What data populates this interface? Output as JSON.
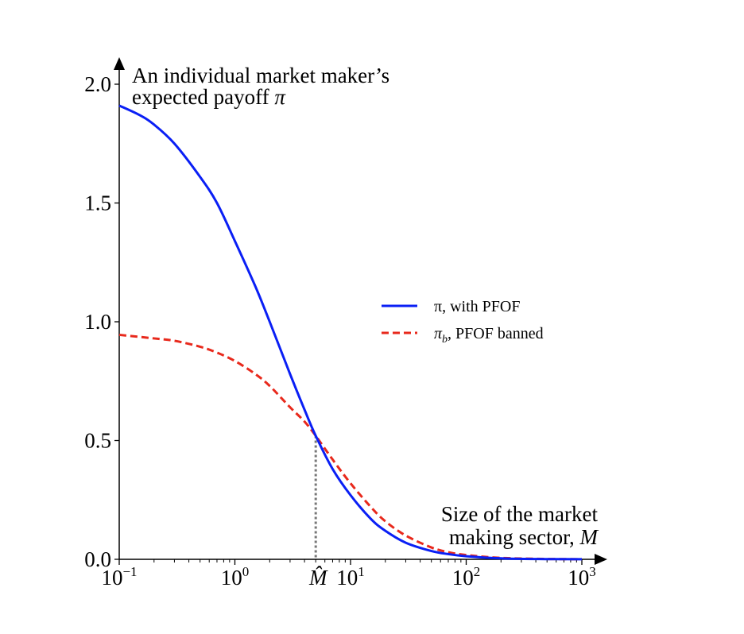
{
  "chart_data": {
    "type": "line",
    "x_scale": "log",
    "x_range": [
      0.1,
      1000
    ],
    "y_range": [
      0,
      2.0
    ],
    "grid": false,
    "legend_position": "right-middle",
    "y_axis_title": [
      "An individual market maker’s",
      "expected payoff π"
    ],
    "x_axis_title": [
      "Size of the market",
      "making sector, M"
    ],
    "y_ticks": [
      {
        "value": 0.0,
        "label": "0.0"
      },
      {
        "value": 0.5,
        "label": "0.5"
      },
      {
        "value": 1.0,
        "label": "1.0"
      },
      {
        "value": 1.5,
        "label": "1.5"
      },
      {
        "value": 2.0,
        "label": "2.0"
      }
    ],
    "x_ticks": [
      {
        "value": 0.1,
        "base": "10",
        "exp": "−1"
      },
      {
        "value": 1,
        "base": "10",
        "exp": "0"
      },
      {
        "value": 10,
        "base": "10",
        "exp": "1"
      },
      {
        "value": 100,
        "base": "10",
        "exp": "2"
      },
      {
        "value": 1000,
        "base": "10",
        "exp": "3"
      }
    ],
    "marker": {
      "x": 5.0,
      "y": 0.52,
      "label": "M̂",
      "style": "dotted",
      "color": "#777777"
    },
    "series": [
      {
        "name": "π, with PFOF",
        "color": "#0a1ff5",
        "dash": "solid",
        "x": [
          0.1,
          0.15,
          0.2,
          0.3,
          0.5,
          0.7,
          1.0,
          1.5,
          2.0,
          3.0,
          4.0,
          5.0,
          7.0,
          10,
          15,
          20,
          30,
          50,
          70,
          100,
          200,
          500,
          1000
        ],
        "y": [
          1.91,
          1.87,
          1.83,
          1.75,
          1.61,
          1.5,
          1.34,
          1.15,
          1.0,
          0.78,
          0.63,
          0.52,
          0.38,
          0.27,
          0.17,
          0.12,
          0.07,
          0.035,
          0.022,
          0.013,
          0.004,
          0.001,
          0.0003
        ]
      },
      {
        "name": "πb, PFOF banned",
        "color": "#e8291c",
        "dash": "dashed",
        "x": [
          0.1,
          0.2,
          0.3,
          0.5,
          0.7,
          1.0,
          1.5,
          2.0,
          3.0,
          4.0,
          5.0,
          7.0,
          10,
          15,
          20,
          30,
          50,
          70,
          100,
          200,
          500,
          1000
        ],
        "y": [
          0.945,
          0.93,
          0.92,
          0.895,
          0.87,
          0.835,
          0.78,
          0.73,
          0.64,
          0.58,
          0.52,
          0.42,
          0.32,
          0.22,
          0.16,
          0.1,
          0.05,
          0.03,
          0.018,
          0.006,
          0.0015,
          0.0005
        ]
      }
    ]
  },
  "legend": {
    "blue_label": "π, with PFOF",
    "red_label_base": "π",
    "red_label_sub": "b",
    "red_label_rest": ", PFOF banned"
  },
  "labels": {
    "y_title_line1": "An individual market maker’s",
    "y_title_line2_text": "expected payoff ",
    "y_title_line2_sym": "π",
    "x_title_line1": "Size of the market",
    "x_title_line2_text": "making sector, ",
    "x_title_line2_sym": "M",
    "marker_label": "M̂"
  }
}
